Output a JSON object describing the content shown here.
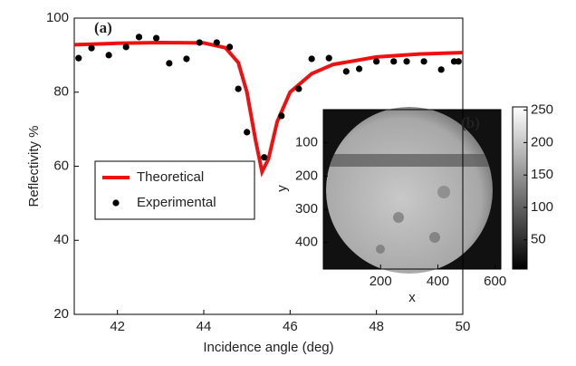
{
  "chart_data": [
    {
      "type": "line",
      "annotation": "(a)",
      "xlabel": "Incidence angle (deg)",
      "ylabel": "Reflectivity %",
      "xlim": [
        41,
        50
      ],
      "xticks": [
        42,
        44,
        46,
        48,
        50
      ],
      "ylim": [
        20,
        100
      ],
      "yticks": [
        20,
        40,
        60,
        80,
        100
      ],
      "legend": "lower left",
      "series": [
        {
          "name": "Theoretical",
          "color": "#ee1111",
          "mode": "line",
          "x": [
            41,
            42,
            43,
            44,
            44.5,
            44.8,
            45,
            45.2,
            45.35,
            45.5,
            45.7,
            46,
            46.5,
            47,
            48,
            49,
            50
          ],
          "values": [
            92.8,
            93.2,
            93.4,
            93.3,
            92,
            88,
            80,
            67,
            58.5,
            62,
            72,
            80,
            85,
            87.5,
            89.5,
            90.3,
            90.7
          ]
        },
        {
          "name": "Experimental",
          "color": "#000000",
          "mode": "markers",
          "x": [
            41.1,
            41.4,
            41.8,
            42.2,
            42.5,
            42.9,
            43.2,
            43.6,
            43.9,
            44.3,
            44.6,
            44.8,
            45.0,
            45.4,
            45.8,
            46.2,
            46.5,
            46.9,
            47.3,
            47.6,
            48.0,
            48.4,
            48.7,
            49.1,
            49.5,
            49.8,
            49.9
          ],
          "values": [
            89.2,
            91.9,
            90,
            92.2,
            94.9,
            94.6,
            87.8,
            89,
            93.4,
            93.4,
            92.2,
            80.9,
            69.2,
            62.4,
            73.6,
            80.9,
            89,
            89.2,
            85.6,
            86.3,
            88.3,
            88.3,
            88.3,
            88.3,
            86.1,
            88.3,
            88.3
          ]
        }
      ]
    },
    {
      "type": "image",
      "annotation": "(b)",
      "xlabel": "x",
      "ylabel": "y",
      "xlim": [
        0,
        620
      ],
      "xticks": [
        200,
        400,
        600
      ],
      "ylim": [
        0,
        480
      ],
      "yticks": [
        100,
        200,
        300,
        400
      ],
      "colorbar_lim": [
        5,
        255
      ],
      "colorbar_ticks": [
        50,
        100,
        150,
        200,
        250
      ]
    }
  ]
}
